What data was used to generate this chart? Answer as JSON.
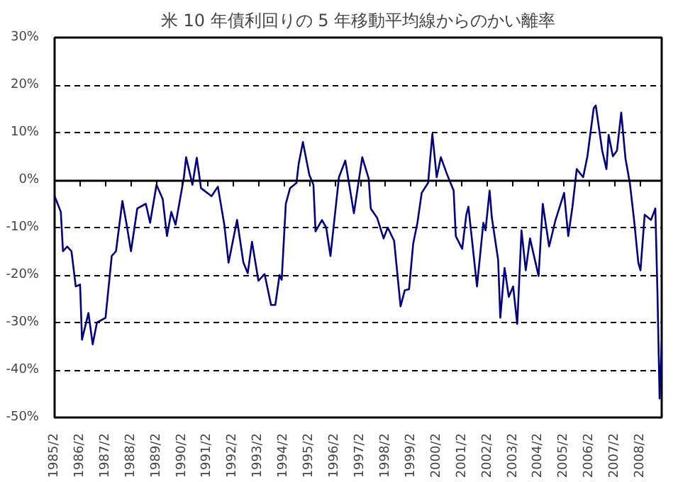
{
  "chart_data": {
    "type": "line",
    "title": "米 10 年債利回りの 5 年移動平均線からのかい離率",
    "x": [
      "1985-02",
      "1985-05",
      "1985-06",
      "1985-08",
      "1985-10",
      "1985-12",
      "1986-02",
      "1986-03",
      "1986-06",
      "1986-08",
      "1986-10",
      "1987-02",
      "1987-05",
      "1987-07",
      "1987-10",
      "1987-12",
      "1988-02",
      "1988-05",
      "1988-09",
      "1988-11",
      "1989-02",
      "1989-05",
      "1989-07",
      "1989-09",
      "1989-11",
      "1990-03",
      "1990-04",
      "1990-07",
      "1990-09",
      "1990-11",
      "1991-04",
      "1991-07",
      "1991-10",
      "1991-12",
      "1992-04",
      "1992-07",
      "1992-09",
      "1992-11",
      "1993-02",
      "1993-05",
      "1993-08",
      "1993-10",
      "1993-12",
      "1994-01",
      "1994-03",
      "1994-05",
      "1994-08",
      "1994-09",
      "1994-11",
      "1995-02",
      "1995-04",
      "1995-05",
      "1995-08",
      "1995-10",
      "1995-12",
      "1996-04",
      "1996-07",
      "1996-11",
      "1997-03",
      "1997-06",
      "1997-07",
      "1997-10",
      "1998-01",
      "1998-03",
      "1998-06",
      "1998-09",
      "1998-11",
      "1999-01",
      "1999-03",
      "1999-05",
      "1999-07",
      "1999-10",
      "1999-12",
      "2000-02",
      "2000-04",
      "2000-07",
      "2000-10",
      "2000-11",
      "2001-02",
      "2001-04",
      "2001-05",
      "2001-09",
      "2001-12",
      "2002-01",
      "2002-03",
      "2002-04",
      "2002-07",
      "2002-08",
      "2002-10",
      "2002-12",
      "2003-02",
      "2003-04",
      "2003-06",
      "2003-08",
      "2003-10",
      "2004-02",
      "2004-04",
      "2004-07",
      "2004-10",
      "2005-02",
      "2005-04",
      "2005-06",
      "2005-08",
      "2005-11",
      "2006-01",
      "2006-04",
      "2006-05",
      "2006-08",
      "2006-10",
      "2006-11",
      "2007-01",
      "2007-03",
      "2007-05",
      "2007-07",
      "2007-09",
      "2007-11",
      "2008-01",
      "2008-02",
      "2008-04",
      "2008-07",
      "2008-09",
      "2008-10",
      "2008-11",
      "2008-12"
    ],
    "series": [
      {
        "color": "#000080",
        "values": [
          -3.4,
          -6.7,
          -15,
          -14,
          -15,
          -22.4,
          -22,
          -33.6,
          -28,
          -34.6,
          -30,
          -29,
          -16,
          -15,
          -4.4,
          -9.4,
          -15,
          -6,
          -5,
          -9,
          -1,
          -4,
          -11.8,
          -6.7,
          -9.4,
          0.6,
          4.8,
          -1,
          4.7,
          -1.7,
          -3.4,
          -1.4,
          -9.4,
          -17.4,
          -8.4,
          -17.4,
          -19.6,
          -13,
          -21.2,
          -19.8,
          -26.3,
          -26.3,
          -20,
          -21,
          -5,
          -1.7,
          -0.6,
          3.4,
          8,
          1.1,
          -1,
          -10.8,
          -8.4,
          -10,
          -16,
          0.6,
          4.1,
          -7,
          4.8,
          0.3,
          -6,
          -8,
          -12.3,
          -10,
          -12.8,
          -26.6,
          -23.2,
          -23,
          -13.4,
          -9,
          -2.7,
          -0.6,
          9.7,
          0.6,
          4.8,
          1.1,
          -2.2,
          -11.8,
          -14.5,
          -7.3,
          -5.6,
          -22.4,
          -9,
          -10.6,
          -2.2,
          -7.8,
          -16.8,
          -29,
          -18.5,
          -24.6,
          -22.4,
          -30.3,
          -10.6,
          -19,
          -12.3,
          -20.2,
          -5,
          -14,
          -8.4,
          -2.7,
          -11.8,
          -5.6,
          2.3,
          0.6,
          5,
          15.1,
          15.7,
          6.2,
          2.3,
          9.5,
          5,
          6.2,
          14.2,
          4.5,
          -0.6,
          -8.4,
          -17.4,
          -19,
          -7.3,
          -8.4,
          -6,
          -23.5,
          -46,
          -34
        ]
      }
    ],
    "xlim": [
      "1985-02",
      "2008-12"
    ],
    "xticks": [
      {
        "value": "1985-02",
        "label": "1985/2"
      },
      {
        "value": "1986-02",
        "label": "1986/2"
      },
      {
        "value": "1987-02",
        "label": "1987/2"
      },
      {
        "value": "1988-02",
        "label": "1988/2"
      },
      {
        "value": "1989-02",
        "label": "1989/2"
      },
      {
        "value": "1990-02",
        "label": "1990/2"
      },
      {
        "value": "1991-02",
        "label": "1991/2"
      },
      {
        "value": "1992-02",
        "label": "1992/2"
      },
      {
        "value": "1993-02",
        "label": "1993/2"
      },
      {
        "value": "1994-02",
        "label": "1994/2"
      },
      {
        "value": "1995-02",
        "label": "1995/2"
      },
      {
        "value": "1996-02",
        "label": "1996/2"
      },
      {
        "value": "1997-02",
        "label": "1997/2"
      },
      {
        "value": "1998-02",
        "label": "1998/2"
      },
      {
        "value": "1999-02",
        "label": "1999/2"
      },
      {
        "value": "2000-02",
        "label": "2000/2"
      },
      {
        "value": "2001-02",
        "label": "2001/2"
      },
      {
        "value": "2002-02",
        "label": "2002/2"
      },
      {
        "value": "2003-02",
        "label": "2003/2"
      },
      {
        "value": "2004-02",
        "label": "2004/2"
      },
      {
        "value": "2005-02",
        "label": "2005/2"
      },
      {
        "value": "2006-02",
        "label": "2006/2"
      },
      {
        "value": "2007-02",
        "label": "2007/2"
      },
      {
        "value": "2008-02",
        "label": "2008/2"
      }
    ],
    "ylim": [
      -50,
      30
    ],
    "yticks": [
      {
        "value": -50,
        "label": "-50%"
      },
      {
        "value": -40,
        "label": "-40%"
      },
      {
        "value": -30,
        "label": "-30%"
      },
      {
        "value": -20,
        "label": "-20%"
      },
      {
        "value": -10,
        "label": "-10%"
      },
      {
        "value": 0,
        "label": "0%"
      },
      {
        "value": 10,
        "label": "10%"
      },
      {
        "value": 20,
        "label": "20%"
      },
      {
        "value": 30,
        "label": "30%"
      }
    ],
    "grid": "y",
    "marker": "none",
    "line_style": "solid"
  }
}
